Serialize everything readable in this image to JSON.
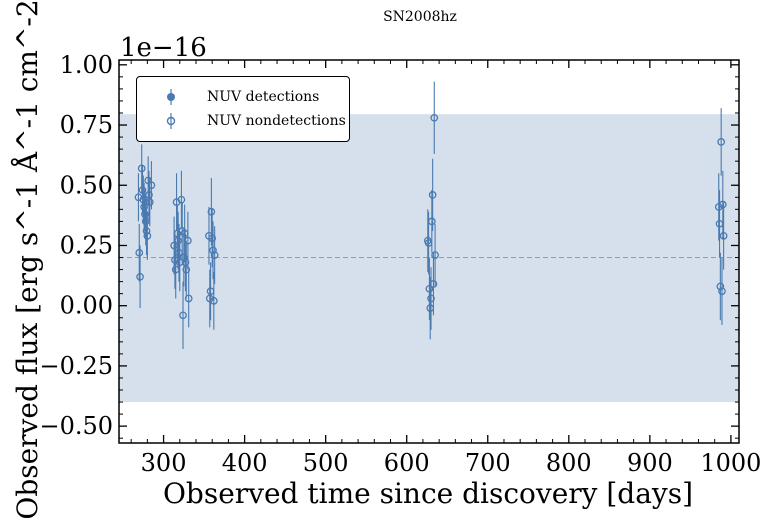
{
  "chart_data": {
    "type": "scatter",
    "title": "SN2008hz",
    "xlabel": "Observed time since discovery [days]",
    "ylabel": "Observed flux [erg s^-1 Å^-1 cm^-2]",
    "y_offset_label": "1e−16",
    "xlim": [
      245,
      1010
    ],
    "ylim": [
      -0.57,
      1.02
    ],
    "xticks": [
      300,
      400,
      500,
      600,
      700,
      800,
      900,
      1000
    ],
    "yticks": [
      -0.5,
      -0.25,
      0.0,
      0.25,
      0.5,
      0.75,
      1.0
    ],
    "ytick_labels": [
      "−0.50",
      "−0.25",
      "0.00",
      "0.25",
      "0.50",
      "0.75",
      "1.00"
    ],
    "xtick_labels": [
      "300",
      "400",
      "500",
      "600",
      "700",
      "800",
      "900",
      "1000"
    ],
    "reference_line": 0.2,
    "band": [
      -0.4,
      0.795
    ],
    "colors": {
      "marker": "#4a7ab0",
      "band": "#c7d6e6",
      "refline": "#7fa0c8"
    },
    "legend": {
      "position": "top-left",
      "entries": [
        "NUV detections",
        "NUV nondetections"
      ]
    },
    "series": [
      {
        "name": "NUV detections",
        "marker": "filled",
        "points": []
      },
      {
        "name": "NUV nondetections",
        "marker": "open",
        "points": [
          {
            "x": 269,
            "y": 0.45,
            "err": 0.1
          },
          {
            "x": 270,
            "y": 0.22,
            "err": 0.12
          },
          {
            "x": 271,
            "y": 0.12,
            "err": 0.13
          },
          {
            "x": 273,
            "y": 0.57,
            "err": 0.1
          },
          {
            "x": 274,
            "y": 0.48,
            "err": 0.1
          },
          {
            "x": 275,
            "y": 0.44,
            "err": 0.1
          },
          {
            "x": 276,
            "y": 0.41,
            "err": 0.1
          },
          {
            "x": 277,
            "y": 0.38,
            "err": 0.1
          },
          {
            "x": 278,
            "y": 0.35,
            "err": 0.1
          },
          {
            "x": 279,
            "y": 0.31,
            "err": 0.1
          },
          {
            "x": 280,
            "y": 0.29,
            "err": 0.1
          },
          {
            "x": 281,
            "y": 0.52,
            "err": 0.1
          },
          {
            "x": 282,
            "y": 0.46,
            "err": 0.1
          },
          {
            "x": 283,
            "y": 0.43,
            "err": 0.1
          },
          {
            "x": 285,
            "y": 0.5,
            "err": 0.1
          },
          {
            "x": 313,
            "y": 0.25,
            "err": 0.12
          },
          {
            "x": 314,
            "y": 0.19,
            "err": 0.12
          },
          {
            "x": 315,
            "y": 0.15,
            "err": 0.12
          },
          {
            "x": 316,
            "y": 0.43,
            "err": 0.12
          },
          {
            "x": 317,
            "y": 0.3,
            "err": 0.12
          },
          {
            "x": 318,
            "y": 0.27,
            "err": 0.12
          },
          {
            "x": 319,
            "y": 0.22,
            "err": 0.12
          },
          {
            "x": 320,
            "y": 0.18,
            "err": 0.12
          },
          {
            "x": 322,
            "y": 0.44,
            "err": 0.12
          },
          {
            "x": 323,
            "y": 0.31,
            "err": 0.12
          },
          {
            "x": 324,
            "y": -0.04,
            "err": 0.14
          },
          {
            "x": 325,
            "y": 0.2,
            "err": 0.12
          },
          {
            "x": 326,
            "y": 0.3,
            "err": 0.12
          },
          {
            "x": 327,
            "y": 0.18,
            "err": 0.12
          },
          {
            "x": 328,
            "y": 0.15,
            "err": 0.12
          },
          {
            "x": 330,
            "y": 0.27,
            "err": 0.12
          },
          {
            "x": 331,
            "y": 0.03,
            "err": 0.12
          },
          {
            "x": 356,
            "y": 0.29,
            "err": 0.12
          },
          {
            "x": 357,
            "y": 0.03,
            "err": 0.12
          },
          {
            "x": 358,
            "y": 0.06,
            "err": 0.12
          },
          {
            "x": 359,
            "y": 0.39,
            "err": 0.14
          },
          {
            "x": 360,
            "y": 0.28,
            "err": 0.12
          },
          {
            "x": 361,
            "y": 0.23,
            "err": 0.12
          },
          {
            "x": 362,
            "y": 0.02,
            "err": 0.12
          },
          {
            "x": 363,
            "y": 0.21,
            "err": 0.12
          },
          {
            "x": 626,
            "y": 0.27,
            "err": 0.13
          },
          {
            "x": 627,
            "y": 0.26,
            "err": 0.13
          },
          {
            "x": 628,
            "y": 0.07,
            "err": 0.13
          },
          {
            "x": 629,
            "y": -0.01,
            "err": 0.13
          },
          {
            "x": 630,
            "y": 0.03,
            "err": 0.13
          },
          {
            "x": 631,
            "y": 0.35,
            "err": 0.13
          },
          {
            "x": 632,
            "y": 0.46,
            "err": 0.15
          },
          {
            "x": 633,
            "y": 0.09,
            "err": 0.13
          },
          {
            "x": 634,
            "y": 0.78,
            "err": 0.15
          },
          {
            "x": 635,
            "y": 0.21,
            "err": 0.13
          },
          {
            "x": 985,
            "y": 0.41,
            "err": 0.14
          },
          {
            "x": 986,
            "y": 0.34,
            "err": 0.14
          },
          {
            "x": 987,
            "y": 0.08,
            "err": 0.14
          },
          {
            "x": 988,
            "y": 0.68,
            "err": 0.14
          },
          {
            "x": 989,
            "y": 0.06,
            "err": 0.14
          },
          {
            "x": 990,
            "y": 0.42,
            "err": 0.14
          },
          {
            "x": 991,
            "y": 0.29,
            "err": 0.14
          }
        ]
      }
    ]
  }
}
